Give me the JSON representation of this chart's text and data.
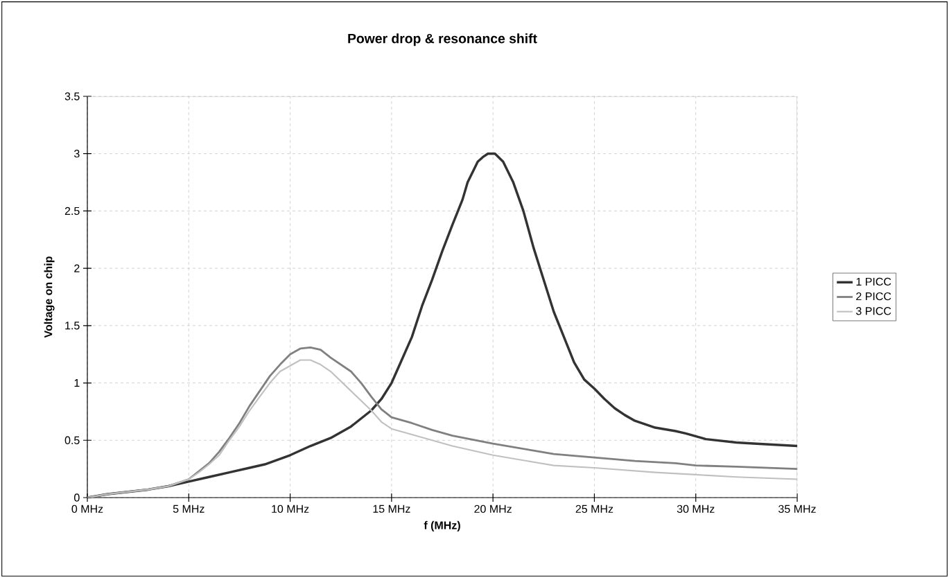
{
  "chart_data": {
    "type": "line",
    "title": "Power drop & resonance shift",
    "xlabel": "f (MHz)",
    "ylabel": "Voltage on chip",
    "xlim": [
      0,
      35
    ],
    "ylim": [
      0,
      3.5
    ],
    "xticks": [
      {
        "value": 0,
        "label": "0 MHz"
      },
      {
        "value": 5,
        "label": "5 MHz"
      },
      {
        "value": 10,
        "label": "10 MHz"
      },
      {
        "value": 15,
        "label": "15 MHz"
      },
      {
        "value": 20,
        "label": "20 MHz"
      },
      {
        "value": 25,
        "label": "25 MHz"
      },
      {
        "value": 30,
        "label": "30 MHz"
      },
      {
        "value": 35,
        "label": "35 MHz"
      }
    ],
    "yticks": [
      0,
      0.5,
      1,
      1.5,
      2,
      2.5,
      3,
      3.5
    ],
    "grid": true,
    "legend": "right",
    "marker": "none",
    "line_style": "solid",
    "series": [
      {
        "name": "1 PICC",
        "color": "#333333",
        "x": [
          0,
          1,
          2,
          3,
          4,
          5,
          6,
          7,
          8,
          8.75,
          10,
          11,
          12,
          13,
          14,
          14.5,
          15,
          15.5,
          16,
          16.5,
          17,
          17.5,
          18,
          18.5,
          18.75,
          19.25,
          19.5,
          19.75,
          20.1,
          20.5,
          21,
          21.5,
          22,
          22.5,
          23,
          23.5,
          24,
          24.5,
          25,
          25.5,
          26,
          26.5,
          27,
          27.5,
          28,
          29,
          29.5,
          30.5,
          32,
          33,
          35
        ],
        "values": [
          0,
          0.03,
          0.05,
          0.07,
          0.1,
          0.14,
          0.18,
          0.22,
          0.26,
          0.29,
          0.37,
          0.45,
          0.52,
          0.62,
          0.76,
          0.86,
          1.0,
          1.2,
          1.4,
          1.67,
          1.9,
          2.15,
          2.38,
          2.6,
          2.75,
          2.93,
          2.97,
          3.0,
          3.0,
          2.93,
          2.75,
          2.5,
          2.18,
          1.9,
          1.62,
          1.4,
          1.18,
          1.03,
          0.95,
          0.86,
          0.78,
          0.72,
          0.67,
          0.64,
          0.61,
          0.58,
          0.56,
          0.51,
          0.48,
          0.47,
          0.45
        ]
      },
      {
        "name": "2 PICC",
        "color": "#808080",
        "x": [
          0,
          1,
          2,
          3,
          4,
          5,
          5.5,
          6,
          6.5,
          7,
          7.5,
          8,
          8.5,
          9,
          9.5,
          10,
          10.5,
          11,
          11.5,
          12,
          13,
          13.5,
          14,
          14.5,
          15,
          16,
          17,
          18,
          20,
          22,
          23,
          25,
          27,
          29,
          30,
          32,
          35
        ],
        "values": [
          0,
          0.03,
          0.05,
          0.07,
          0.1,
          0.16,
          0.23,
          0.3,
          0.4,
          0.52,
          0.65,
          0.8,
          0.93,
          1.06,
          1.16,
          1.25,
          1.3,
          1.31,
          1.29,
          1.22,
          1.1,
          1.0,
          0.88,
          0.77,
          0.7,
          0.65,
          0.59,
          0.54,
          0.47,
          0.41,
          0.38,
          0.35,
          0.32,
          0.3,
          0.28,
          0.27,
          0.25
        ]
      },
      {
        "name": "3 PICC",
        "color": "#c0c0c0",
        "x": [
          0,
          1,
          2,
          3,
          4,
          5,
          5.5,
          6,
          6.5,
          7,
          7.5,
          8,
          8.5,
          9,
          9.5,
          10,
          10.5,
          11,
          11.5,
          12,
          13,
          14,
          14.5,
          15,
          16,
          17,
          18,
          20,
          22,
          23,
          25,
          28,
          30,
          32,
          35
        ],
        "values": [
          0,
          0.03,
          0.05,
          0.07,
          0.1,
          0.16,
          0.22,
          0.29,
          0.37,
          0.5,
          0.62,
          0.76,
          0.88,
          1.0,
          1.1,
          1.15,
          1.2,
          1.2,
          1.16,
          1.1,
          0.93,
          0.76,
          0.66,
          0.6,
          0.55,
          0.5,
          0.45,
          0.37,
          0.31,
          0.28,
          0.26,
          0.22,
          0.2,
          0.18,
          0.16
        ]
      }
    ]
  }
}
